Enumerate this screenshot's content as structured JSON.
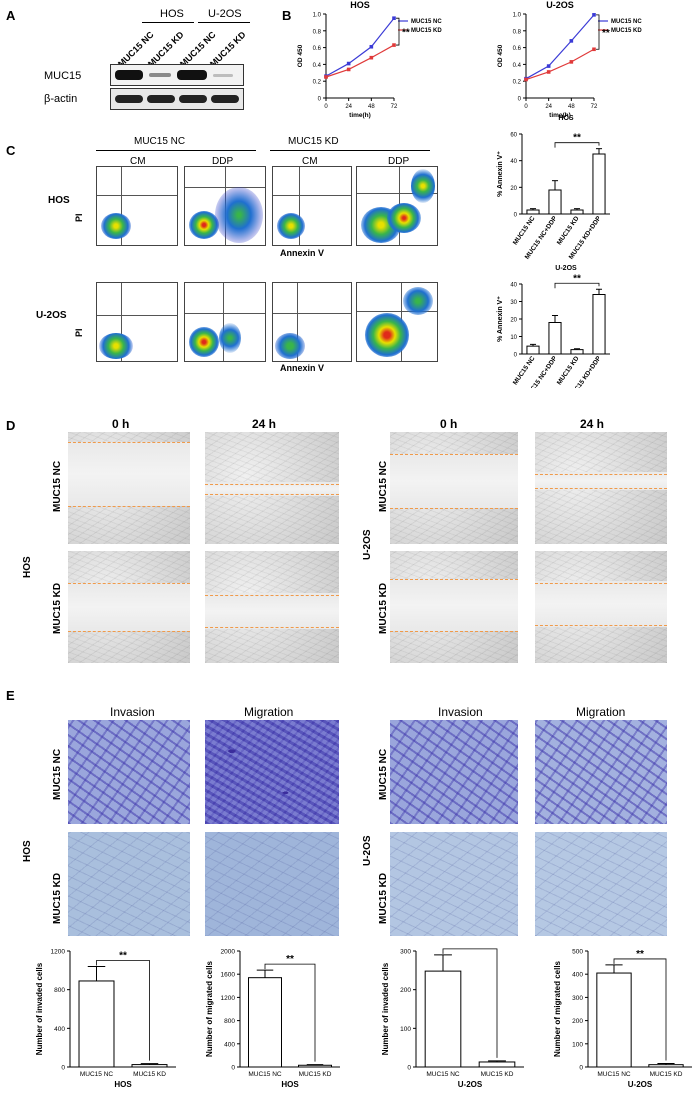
{
  "panels": {
    "A": "A",
    "B": "B",
    "C": "C",
    "D": "D",
    "E": "E"
  },
  "panelA": {
    "groups": [
      "HOS",
      "U-2OS"
    ],
    "lanes": [
      "MUC15 NC",
      "MUC15 KD",
      "MUC15 NC",
      "MUC15 KD"
    ],
    "proteins": [
      "MUC15",
      "β-actin"
    ]
  },
  "panelB": {
    "charts": [
      {
        "title": "HOS",
        "ylabel": "OD 450",
        "xlabel": "time(h)",
        "sig": "**"
      },
      {
        "title": "U-2OS",
        "ylabel": "OD 450",
        "xlabel": "time(h)",
        "sig": "**"
      }
    ],
    "legend": [
      "MUC15 NC",
      "MUC15 KD"
    ]
  },
  "panelC": {
    "groups": [
      "MUC15 NC",
      "MUC15 KD"
    ],
    "conditions": [
      "CM",
      "DDP",
      "CM",
      "DDP"
    ],
    "cell_lines": [
      "HOS",
      "U-2OS"
    ],
    "xaxis": "Annexin V",
    "yaxis": "PI",
    "bar_categories": [
      "MUC15 NC",
      "MUC15 NC+DDP",
      "MUC15 KD",
      "MUC15 KD+DDP"
    ]
  },
  "panelD": {
    "times": [
      "0 h",
      "24 h",
      "0 h",
      "24 h"
    ],
    "cell_lines": [
      "HOS",
      "U-2OS"
    ],
    "rows": [
      "MUC15 NC",
      "MUC15 KD",
      "MUC15 NC",
      "MUC15 KD"
    ]
  },
  "panelE": {
    "assays": [
      "Invasion",
      "Migration",
      "Invasion",
      "Migration"
    ],
    "cell_lines": [
      "HOS",
      "U-2OS"
    ],
    "rows": [
      "MUC15 NC",
      "MUC15 KD",
      "MUC15 NC",
      "MUC15 KD"
    ]
  },
  "chart_data": [
    {
      "id": "B-HOS",
      "type": "line",
      "title": "HOS",
      "xlabel": "time(h)",
      "ylabel": "OD 450",
      "x": [
        0,
        24,
        48,
        72
      ],
      "xlim": [
        0,
        72
      ],
      "ylim": [
        0,
        1.0
      ],
      "xticks": [
        "0",
        "24",
        "48",
        "72"
      ],
      "yticks": [
        "0",
        "0.2",
        "0.4",
        "0.6",
        "0.8",
        "1.0"
      ],
      "series": [
        {
          "name": "MUC15 NC",
          "color": "#3b3bd6",
          "values": [
            0.26,
            0.41,
            0.61,
            0.95
          ]
        },
        {
          "name": "MUC15 KD",
          "color": "#e03a3a",
          "values": [
            0.25,
            0.34,
            0.48,
            0.63
          ]
        }
      ],
      "annotation": "**"
    },
    {
      "id": "B-U2OS",
      "type": "line",
      "title": "U-2OS",
      "xlabel": "time(h)",
      "ylabel": "OD 450",
      "x": [
        0,
        24,
        48,
        72
      ],
      "xlim": [
        0,
        72
      ],
      "ylim": [
        0,
        1.0
      ],
      "xticks": [
        "0",
        "24",
        "48",
        "72"
      ],
      "yticks": [
        "0",
        "0.2",
        "0.4",
        "0.6",
        "0.8",
        "1.0"
      ],
      "series": [
        {
          "name": "MUC15 NC",
          "color": "#3b3bd6",
          "values": [
            0.23,
            0.38,
            0.68,
            0.99
          ]
        },
        {
          "name": "MUC15 KD",
          "color": "#e03a3a",
          "values": [
            0.22,
            0.31,
            0.43,
            0.58
          ]
        }
      ],
      "annotation": "**"
    },
    {
      "id": "C-HOS",
      "type": "bar",
      "title": "HOS",
      "ylabel": "% Annexin V⁺",
      "categories": [
        "MUC15 NC",
        "MUC15 NC+DDP",
        "MUC15 KD",
        "MUC15 KD+DDP"
      ],
      "values": [
        3,
        18,
        3,
        45
      ],
      "errors": [
        1,
        7,
        1,
        4
      ],
      "ylim": [
        0,
        60
      ],
      "yticks": [
        "0",
        "20",
        "40",
        "60"
      ],
      "annotation": "**"
    },
    {
      "id": "C-U2OS",
      "type": "bar",
      "title": "U-2OS",
      "ylabel": "% Annexin V⁺",
      "categories": [
        "MUC15 NC",
        "MUC15 NC+DDP",
        "MUC15 KD",
        "MUC15 KD+DDP"
      ],
      "values": [
        4.5,
        18,
        2.5,
        34
      ],
      "errors": [
        1,
        4,
        0.5,
        3
      ],
      "ylim": [
        0,
        40
      ],
      "yticks": [
        "0",
        "10",
        "20",
        "30",
        "40"
      ],
      "annotation": "**"
    },
    {
      "id": "E-HOS-inv",
      "type": "bar",
      "xlabel": "HOS",
      "ylabel": "Number of invaded cells",
      "categories": [
        "MUC15 NC",
        "MUC15 KD"
      ],
      "values": [
        890,
        25
      ],
      "errors": [
        150,
        10
      ],
      "ylim": [
        0,
        1200
      ],
      "yticks": [
        "0",
        "400",
        "800",
        "1200"
      ],
      "annotation": "**"
    },
    {
      "id": "E-HOS-mig",
      "type": "bar",
      "xlabel": "HOS",
      "ylabel": "Number of migrated cells",
      "categories": [
        "MUC15 NC",
        "MUC15 KD"
      ],
      "values": [
        1540,
        30
      ],
      "errors": [
        130,
        10
      ],
      "ylim": [
        0,
        2000
      ],
      "yticks": [
        "0",
        "400",
        "800",
        "1200",
        "1600",
        "2000"
      ],
      "annotation": "**"
    },
    {
      "id": "E-U2OS-inv",
      "type": "bar",
      "xlabel": "U-2OS",
      "ylabel": "Number of invaded cells",
      "categories": [
        "MUC15 NC",
        "MUC15 KD"
      ],
      "values": [
        248,
        13
      ],
      "errors": [
        42,
        3
      ],
      "ylim": [
        0,
        300
      ],
      "yticks": [
        "0",
        "100",
        "200",
        "300"
      ],
      "annotation": "**"
    },
    {
      "id": "E-U2OS-mig",
      "type": "bar",
      "xlabel": "U-2OS",
      "ylabel": "Number of migrated cells",
      "categories": [
        "MUC15 NC",
        "MUC15 KD"
      ],
      "values": [
        405,
        10
      ],
      "errors": [
        35,
        5
      ],
      "ylim": [
        0,
        500
      ],
      "yticks": [
        "0",
        "100",
        "200",
        "300",
        "400",
        "500"
      ],
      "annotation": "**"
    }
  ]
}
